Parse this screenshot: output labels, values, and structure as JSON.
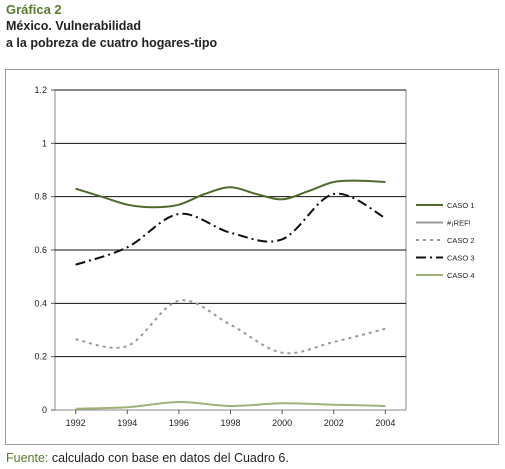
{
  "header": {
    "label": "Gráfica 2",
    "title_line1": "México. Vulnerabilidad",
    "title_line2": "a la pobreza de cuatro hogares-tipo"
  },
  "source": {
    "label": "Fuente:",
    "text": " calculado con base en datos del Cuadro 6."
  },
  "chart_data": {
    "type": "line",
    "title": "",
    "xlabel": "",
    "ylabel": "",
    "xlim": [
      1991.2,
      2004.8
    ],
    "ylim": [
      0,
      1.2
    ],
    "yticks": [
      0,
      0.2,
      0.4,
      0.6,
      0.8,
      1,
      1.2
    ],
    "ytick_labels": [
      "0",
      "0.2",
      "0.4",
      "0.6",
      "0.8",
      "1",
      "1.2"
    ],
    "xticks": [
      1992,
      1994,
      1996,
      1998,
      2000,
      2002,
      2004
    ],
    "xtick_labels": [
      "1992",
      "1994",
      "1996",
      "1998",
      "2000",
      "2002",
      "2004"
    ],
    "grid": "horizontal",
    "legend_position": "right",
    "series": [
      {
        "name": "CASO 1",
        "color": "#4f6a2a",
        "dash": "solid",
        "x": [
          1992,
          1993,
          1994,
          1995,
          1996,
          1997,
          1998,
          1999,
          2000,
          2001,
          2002,
          2003,
          2004
        ],
        "values": [
          0.83,
          0.8,
          0.77,
          0.76,
          0.77,
          0.81,
          0.835,
          0.81,
          0.79,
          0.82,
          0.855,
          0.86,
          0.855
        ]
      },
      {
        "name": "#¡REF!",
        "color": "#9a9a9a",
        "dash": "solid",
        "x": [],
        "values": []
      },
      {
        "name": "CASO 2",
        "color": "#9a9a9a",
        "dash": "dotted",
        "x": [
          1992,
          1994,
          1996,
          1998,
          2000,
          2002,
          2004
        ],
        "values": [
          0.265,
          0.24,
          0.41,
          0.32,
          0.215,
          0.255,
          0.305
        ]
      },
      {
        "name": "CASO 3",
        "color": "#111111",
        "dash": "dashdot",
        "x": [
          1992,
          1994,
          1996,
          1998,
          2000,
          2002,
          2004
        ],
        "values": [
          0.545,
          0.61,
          0.735,
          0.665,
          0.64,
          0.81,
          0.72
        ]
      },
      {
        "name": "CASO 4",
        "color": "#9fb27a",
        "dash": "solid",
        "x": [
          1992,
          1994,
          1996,
          1998,
          2000,
          2002,
          2004
        ],
        "values": [
          0.005,
          0.01,
          0.03,
          0.015,
          0.025,
          0.02,
          0.015
        ]
      }
    ]
  }
}
